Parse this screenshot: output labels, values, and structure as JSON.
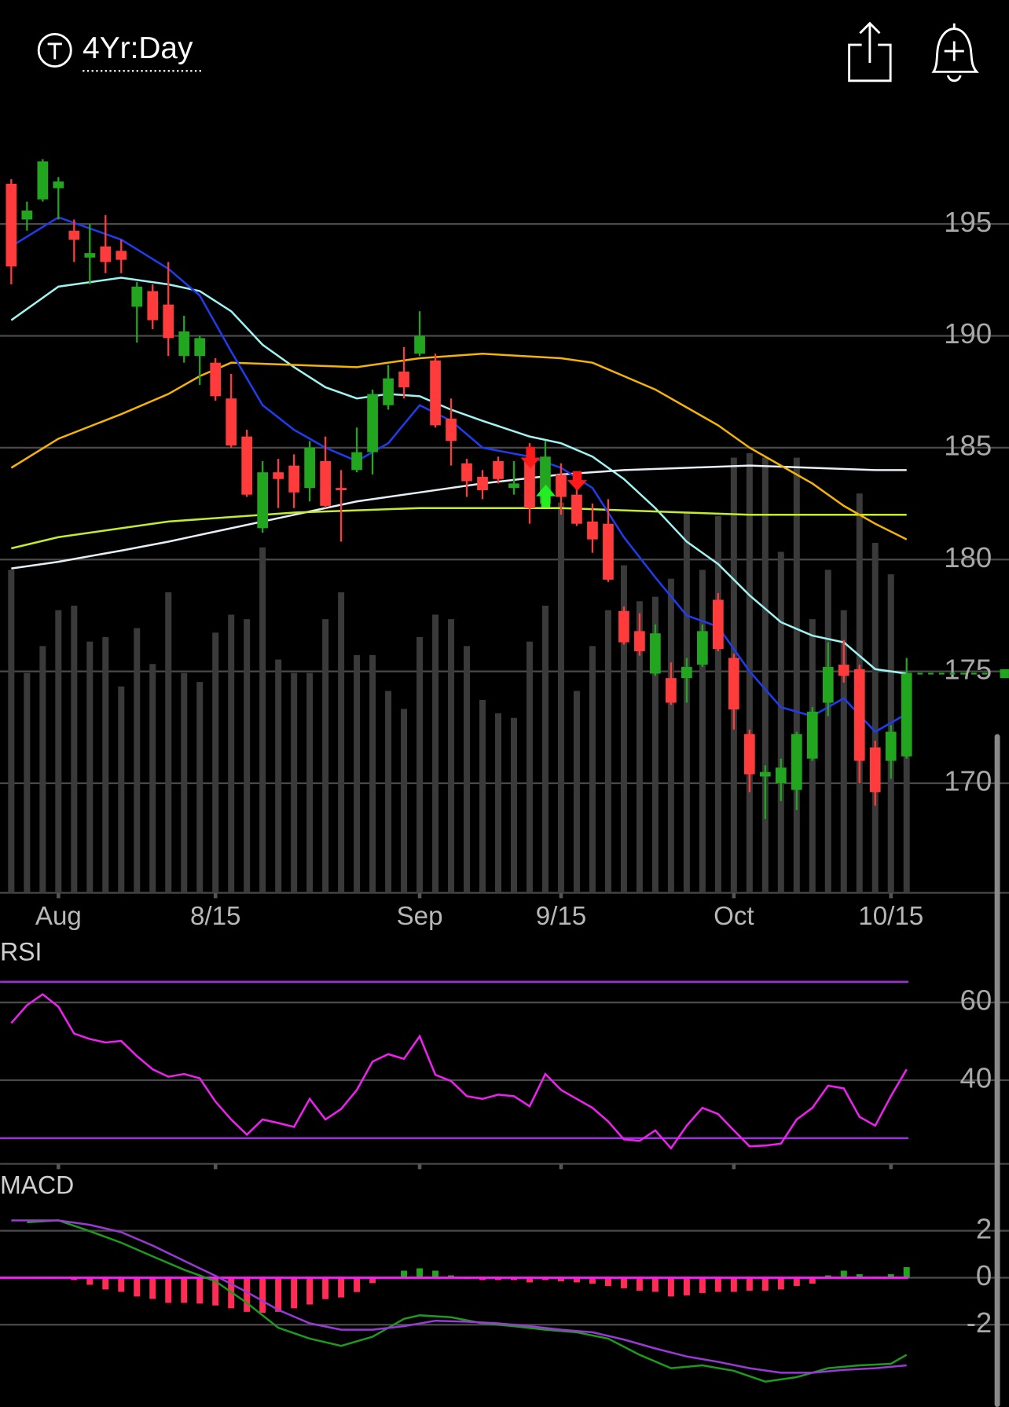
{
  "header": {
    "interval": "4Yr:Day"
  },
  "chart_data": [
    {
      "type": "candlestick",
      "xlim": [
        -0.5,
        57.5
      ],
      "xticks": [
        {
          "value": 3,
          "label": "Aug"
        },
        {
          "value": 13,
          "label": "8/15"
        },
        {
          "value": 26,
          "label": "Sep"
        },
        {
          "value": 35,
          "label": "9/15"
        },
        {
          "value": 46,
          "label": "Oct"
        },
        {
          "value": 56,
          "label": "10/15"
        }
      ],
      "ylim": [
        165.1,
        200.2
      ],
      "yticks": [
        170,
        175,
        180,
        185,
        190,
        195
      ],
      "grid": true,
      "up_color": "#22a51f",
      "down_color": "#ff3b3b",
      "volume_color": "#3a3a3a",
      "open": [
        196.8,
        195.2,
        196.1,
        196.6,
        194.7,
        193.5,
        194.0,
        193.8,
        191.3,
        192.0,
        191.4,
        189.1,
        189.1,
        188.8,
        187.2,
        185.5,
        181.4,
        183.9,
        184.2,
        183.2,
        184.4,
        183.2,
        184.0,
        184.8,
        186.9,
        188.4,
        189.2,
        188.9,
        186.3,
        184.3,
        183.7,
        184.4,
        183.2,
        184.4,
        182.5,
        183.8,
        182.9,
        181.7,
        181.6,
        177.7,
        176.8,
        174.9,
        174.7,
        174.7,
        175.3,
        178.2,
        175.6,
        172.2,
        170.3,
        170.0,
        169.7,
        171.1,
        173.6,
        175.3,
        175.1,
        171.6,
        171.0,
        171.2
      ],
      "high": [
        197.0,
        196.0,
        197.9,
        197.1,
        195.2,
        195.0,
        195.4,
        194.3,
        192.4,
        192.3,
        193.3,
        190.9,
        190.0,
        189.0,
        188.3,
        185.8,
        184.4,
        184.5,
        184.7,
        185.3,
        185.5,
        184.0,
        185.9,
        187.6,
        188.7,
        189.5,
        191.1,
        189.2,
        187.2,
        184.5,
        184.0,
        184.6,
        184.4,
        185.2,
        185.3,
        184.3,
        183.9,
        182.5,
        182.7,
        177.9,
        177.6,
        177.1,
        175.4,
        175.6,
        177.1,
        178.5,
        175.8,
        172.4,
        170.8,
        171.1,
        172.3,
        173.4,
        176.3,
        176.4,
        175.3,
        171.9,
        172.6,
        175.6
      ],
      "low": [
        192.3,
        194.7,
        196.0,
        195.2,
        193.3,
        192.3,
        192.8,
        192.8,
        189.7,
        190.3,
        189.1,
        188.8,
        187.8,
        187.1,
        185.0,
        182.8,
        181.2,
        182.3,
        182.3,
        182.6,
        182.3,
        180.8,
        183.9,
        183.8,
        186.7,
        187.2,
        189.1,
        185.9,
        184.2,
        182.8,
        182.7,
        183.4,
        182.9,
        181.6,
        182.4,
        182.0,
        181.5,
        180.3,
        179.0,
        176.2,
        175.7,
        174.8,
        173.5,
        173.6,
        175.2,
        175.9,
        172.4,
        169.6,
        168.4,
        169.2,
        168.8,
        171.0,
        173.0,
        174.5,
        170.0,
        169.0,
        170.2,
        171.1
      ],
      "close": [
        193.1,
        195.6,
        197.8,
        196.9,
        194.3,
        193.7,
        193.3,
        193.4,
        192.2,
        190.7,
        189.9,
        190.2,
        189.9,
        187.3,
        185.1,
        182.9,
        183.9,
        183.6,
        183.0,
        185.0,
        182.4,
        183.1,
        184.8,
        187.4,
        188.1,
        187.7,
        190.0,
        186.0,
        185.3,
        183.5,
        183.1,
        183.6,
        183.4,
        182.3,
        184.6,
        182.8,
        181.6,
        180.9,
        179.1,
        176.3,
        175.9,
        176.7,
        173.6,
        175.2,
        176.8,
        176.0,
        173.3,
        170.4,
        170.5,
        170.7,
        172.2,
        173.2,
        175.2,
        174.8,
        171.0,
        169.6,
        172.3,
        174.9
      ],
      "volume": [
        72,
        49,
        55,
        63,
        64,
        56,
        57,
        46,
        59,
        51,
        67,
        49,
        47,
        58,
        62,
        61,
        77,
        52,
        49,
        49,
        61,
        67,
        53,
        53,
        45,
        41,
        57,
        62,
        61,
        55,
        43,
        40,
        39,
        56,
        64,
        87,
        45,
        55,
        63,
        73,
        65,
        66,
        70,
        85,
        72,
        84,
        97,
        98,
        97,
        76,
        97,
        61,
        72,
        63,
        89,
        78,
        71,
        39
      ],
      "moving_averages": [
        {
          "color": "#9ff3f0",
          "x": [
            0,
            3,
            7,
            10,
            12,
            14,
            16,
            18,
            20,
            22,
            24,
            26,
            28,
            30,
            33,
            35,
            37,
            39,
            41,
            43,
            45,
            47,
            49,
            51,
            53,
            55,
            57
          ],
          "values": [
            190.7,
            192.2,
            192.6,
            192.3,
            192.0,
            191.1,
            189.6,
            188.6,
            187.7,
            187.2,
            187.4,
            187.3,
            186.7,
            186.2,
            185.5,
            185.2,
            184.6,
            183.6,
            182.3,
            180.8,
            179.8,
            178.4,
            177.2,
            176.6,
            176.3,
            175.1,
            174.9
          ]
        },
        {
          "color": "#e6eef6",
          "x": [
            0,
            3,
            7,
            10,
            14,
            18,
            22,
            26,
            30,
            35,
            39,
            43,
            47,
            51,
            55,
            57
          ],
          "values": [
            179.6,
            179.9,
            180.4,
            180.8,
            181.4,
            182.0,
            182.6,
            183.0,
            183.4,
            183.8,
            184.0,
            184.1,
            184.2,
            184.1,
            184.0,
            184.0
          ]
        },
        {
          "color": "#c3ec2c",
          "x": [
            0,
            3,
            7,
            10,
            14,
            18,
            22,
            26,
            30,
            35,
            39,
            43,
            47,
            51,
            55,
            57
          ],
          "values": [
            180.5,
            181.0,
            181.4,
            181.7,
            181.9,
            182.1,
            182.2,
            182.3,
            182.3,
            182.3,
            182.2,
            182.1,
            182.0,
            182.0,
            182.0,
            182.0
          ]
        },
        {
          "color": "#f5b400",
          "x": [
            0,
            3,
            7,
            10,
            12,
            14,
            18,
            22,
            26,
            30,
            35,
            37,
            39,
            41,
            43,
            45,
            47,
            49,
            51,
            53,
            55,
            57
          ],
          "values": [
            184.1,
            185.4,
            186.5,
            187.4,
            188.2,
            188.8,
            188.7,
            188.6,
            189.0,
            189.2,
            189.0,
            188.8,
            188.2,
            187.6,
            186.8,
            186.0,
            185.0,
            184.2,
            183.4,
            182.4,
            181.6,
            180.9
          ]
        },
        {
          "color": "#1f3cf0",
          "x": [
            0,
            3,
            7,
            10,
            12,
            14,
            16,
            18,
            20,
            22,
            24,
            26,
            28,
            30,
            33,
            35,
            37,
            39,
            41,
            43,
            45,
            47,
            49,
            51,
            53,
            55,
            57
          ],
          "values": [
            194.0,
            195.3,
            194.3,
            193.0,
            191.8,
            189.3,
            186.9,
            185.8,
            185.0,
            184.4,
            185.2,
            186.9,
            186.2,
            185.0,
            184.6,
            184.1,
            183.2,
            181.0,
            179.2,
            177.5,
            177.0,
            175.0,
            173.4,
            173.0,
            173.8,
            172.3,
            173.1
          ]
        }
      ]
    },
    {
      "type": "line",
      "title": "RSI",
      "color": "#f020f0",
      "level_color": "#9b30d9",
      "levels": [
        65.3,
        25.1
      ],
      "ylim": [
        18.5,
        75.5
      ],
      "yticks": [
        40,
        60
      ],
      "grid": true,
      "values": [
        54.7,
        59.3,
        62.1,
        58.9,
        52.0,
        50.6,
        49.7,
        50.1,
        46.2,
        42.8,
        40.9,
        41.6,
        40.5,
        34.5,
        29.9,
        26.0,
        29.9,
        29.0,
        28.0,
        35.2,
        29.9,
        32.6,
        37.5,
        44.8,
        46.7,
        45.5,
        51.3,
        41.4,
        39.8,
        35.9,
        35.2,
        36.3,
        35.9,
        33.3,
        41.6,
        37.5,
        35.2,
        32.9,
        29.4,
        24.8,
        24.4,
        27.1,
        22.5,
        28.3,
        32.9,
        31.3,
        27.1,
        23.0,
        23.2,
        23.7,
        29.9,
        32.9,
        38.6,
        37.9,
        30.6,
        28.3,
        35.9,
        42.8
      ]
    },
    {
      "type": "macd",
      "title": "MACD",
      "ylim": [
        -5.5,
        4.35
      ],
      "yticks": [
        -2,
        0,
        2
      ],
      "grid": true,
      "zero_color": "#ff1aff",
      "up_color": "#22a51f",
      "down_color": "#ff2d55",
      "series": [
        {
          "color": "#1e9a1e",
          "x": [
            1,
            3,
            5,
            7,
            9,
            11,
            13,
            15,
            17,
            19,
            21,
            23,
            25,
            26,
            28,
            30,
            32,
            34,
            36,
            38,
            40,
            42,
            44,
            46,
            48,
            50,
            52,
            54,
            56,
            57
          ],
          "values": [
            2.36,
            2.44,
            1.98,
            1.49,
            0.91,
            0.34,
            -0.15,
            -1.07,
            -2.13,
            -2.59,
            -2.9,
            -2.51,
            -1.75,
            -1.6,
            -1.68,
            -1.94,
            -2.06,
            -2.21,
            -2.32,
            -2.59,
            -3.28,
            -3.85,
            -3.73,
            -3.96,
            -4.42,
            -4.23,
            -3.85,
            -3.73,
            -3.66,
            -3.28
          ]
        },
        {
          "color": "#9a3ad6",
          "x": [
            0,
            3,
            5,
            7,
            9,
            11,
            13,
            15,
            17,
            19,
            21,
            23,
            25,
            27,
            29,
            31,
            33,
            35,
            37,
            39,
            41,
            43,
            45,
            47,
            49,
            51,
            53,
            55,
            57
          ],
          "values": [
            2.44,
            2.44,
            2.25,
            1.94,
            1.37,
            0.72,
            0.08,
            -0.61,
            -1.37,
            -1.94,
            -2.21,
            -2.21,
            -2.06,
            -1.83,
            -1.87,
            -1.94,
            -2.06,
            -2.21,
            -2.32,
            -2.63,
            -3.01,
            -3.35,
            -3.58,
            -3.85,
            -4.04,
            -4.04,
            -3.92,
            -3.85,
            -3.73
          ]
        }
      ],
      "histogram": [
        0,
        0,
        0.05,
        0.05,
        -0.1,
        -0.3,
        -0.5,
        -0.6,
        -0.8,
        -0.9,
        -1.07,
        -1.07,
        -1.1,
        -1.18,
        -1.3,
        -1.45,
        -1.49,
        -1.45,
        -1.3,
        -1.14,
        -0.91,
        -0.84,
        -0.61,
        -0.23,
        0.05,
        0.3,
        0.4,
        0.3,
        0.1,
        -0.05,
        -0.1,
        -0.1,
        -0.1,
        -0.2,
        -0.1,
        -0.15,
        -0.2,
        -0.25,
        -0.35,
        -0.45,
        -0.55,
        -0.6,
        -0.8,
        -0.75,
        -0.65,
        -0.6,
        -0.6,
        -0.55,
        -0.55,
        -0.5,
        -0.35,
        -0.25,
        0.1,
        0.3,
        0.15,
        0.05,
        0.15,
        0.45
      ]
    }
  ]
}
